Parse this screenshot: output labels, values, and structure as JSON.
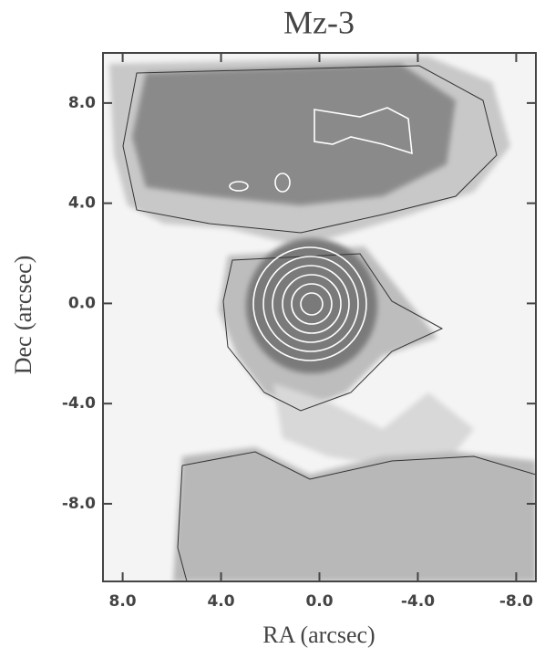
{
  "chart_data": {
    "type": "contour",
    "title": "Mz-3",
    "x_label": "RA (arcsec)",
    "y_label": "Dec (arcsec)",
    "xlim": [
      8.8,
      -8.8
    ],
    "ylim": [
      -11.1,
      10
    ],
    "xticks": [
      {
        "value": 8,
        "label": "8.0"
      },
      {
        "value": 4,
        "label": "4.0"
      },
      {
        "value": 0,
        "label": "0.0"
      },
      {
        "value": -4,
        "label": "-4.0"
      },
      {
        "value": -8,
        "label": "-8.0"
      }
    ],
    "yticks": [
      {
        "value": 8,
        "label": "8.0"
      },
      {
        "value": 4,
        "label": "4.0"
      },
      {
        "value": 0,
        "label": "0.0"
      },
      {
        "value": -4,
        "label": "-4.0"
      },
      {
        "value": -8,
        "label": "-8.0"
      }
    ]
  }
}
